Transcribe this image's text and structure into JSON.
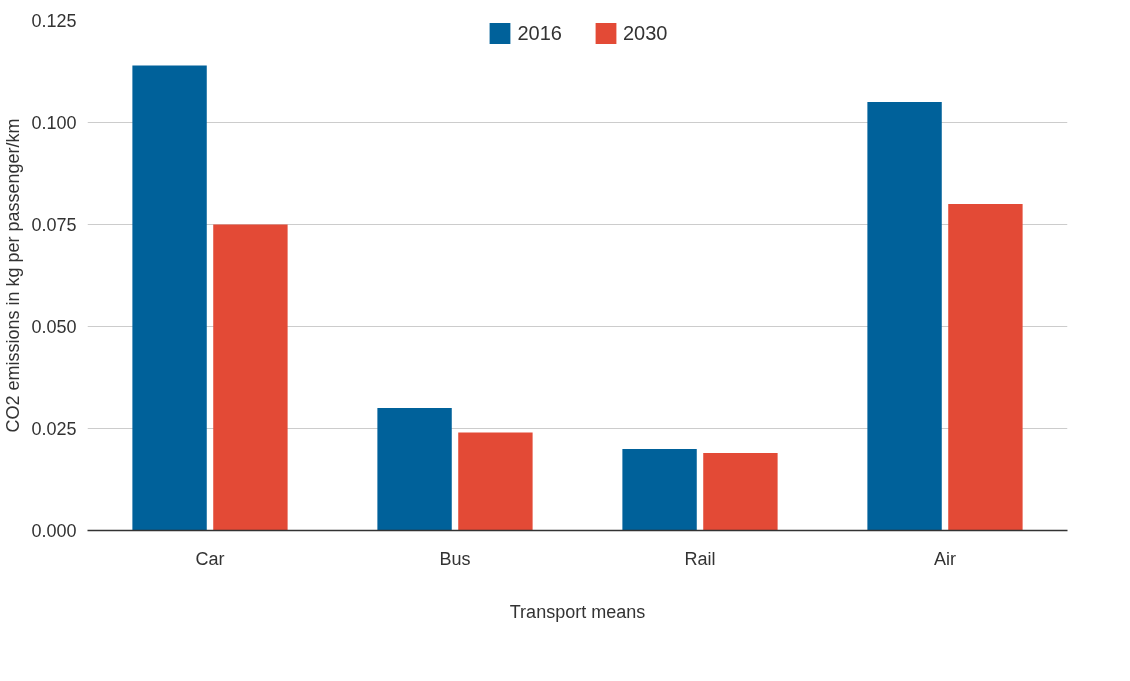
{
  "chart_data": {
    "type": "bar",
    "xlabel": "Transport means",
    "ylabel": "CO2 emissions in kg per passenger/km",
    "categories": [
      "Car",
      "Bus",
      "Rail",
      "Air"
    ],
    "series": [
      {
        "name": "2016",
        "color": "#00619a",
        "values": [
          0.114,
          0.03,
          0.02,
          0.105
        ]
      },
      {
        "name": "2030",
        "color": "#e34a36",
        "values": [
          0.075,
          0.024,
          0.019,
          0.08
        ]
      }
    ],
    "ylim": [
      0,
      0.125
    ],
    "yticks": [
      {
        "value": 0,
        "label": "0.000"
      },
      {
        "value": 0.025,
        "label": "0.025"
      },
      {
        "value": 0.05,
        "label": "0.050"
      },
      {
        "value": 0.075,
        "label": "0.075"
      },
      {
        "value": 0.1,
        "label": "0.100"
      },
      {
        "value": 0.125,
        "label": "0.125"
      }
    ],
    "grid": "y",
    "legend": "top"
  }
}
